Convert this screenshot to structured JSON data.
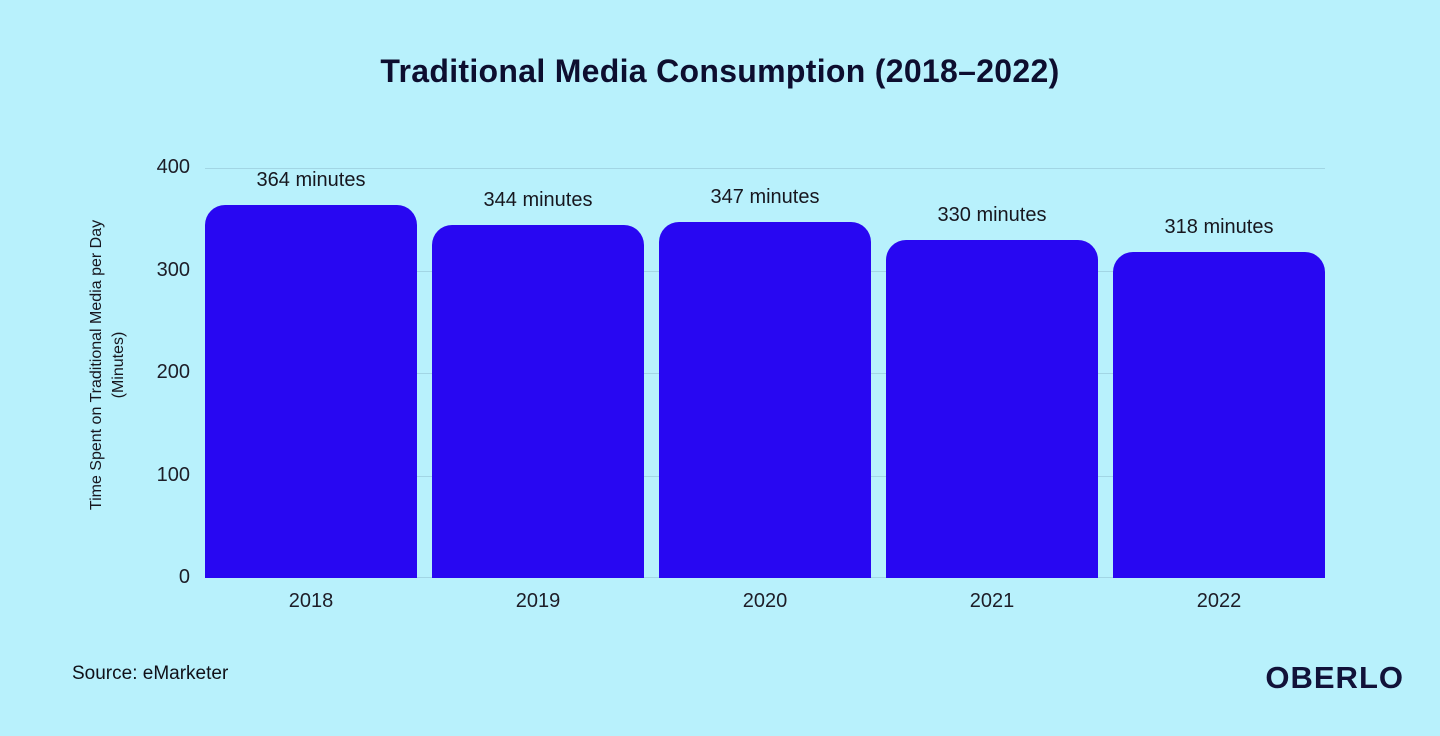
{
  "title": "Traditional Media Consumption (2018–2022)",
  "source": "Source: eMarketer",
  "brand": "OBERLO",
  "colors": {
    "background": "#b8f1fc",
    "bar": "#2807f2",
    "grid": "#a2d6e4",
    "title_ink": "#0d0e2f"
  },
  "ylabel": {
    "line1": "Time Spent on Traditional Media per Day",
    "line2": "(Minutes)"
  },
  "chart_data": {
    "type": "bar",
    "title": "Traditional Media Consumption (2018–2022)",
    "categories": [
      "2018",
      "2019",
      "2020",
      "2021",
      "2022"
    ],
    "values": [
      364,
      344,
      347,
      330,
      318
    ],
    "value_labels": [
      "364 minutes",
      "344 minutes",
      "347 minutes",
      "330 minutes",
      "318 minutes"
    ],
    "xlabel": "",
    "ylabel": "Time Spent on Traditional Media per Day (Minutes)",
    "ylim": [
      0,
      400
    ],
    "yticks": [
      0,
      100,
      200,
      300,
      400
    ],
    "grid": "horizontal",
    "legend": "none"
  }
}
